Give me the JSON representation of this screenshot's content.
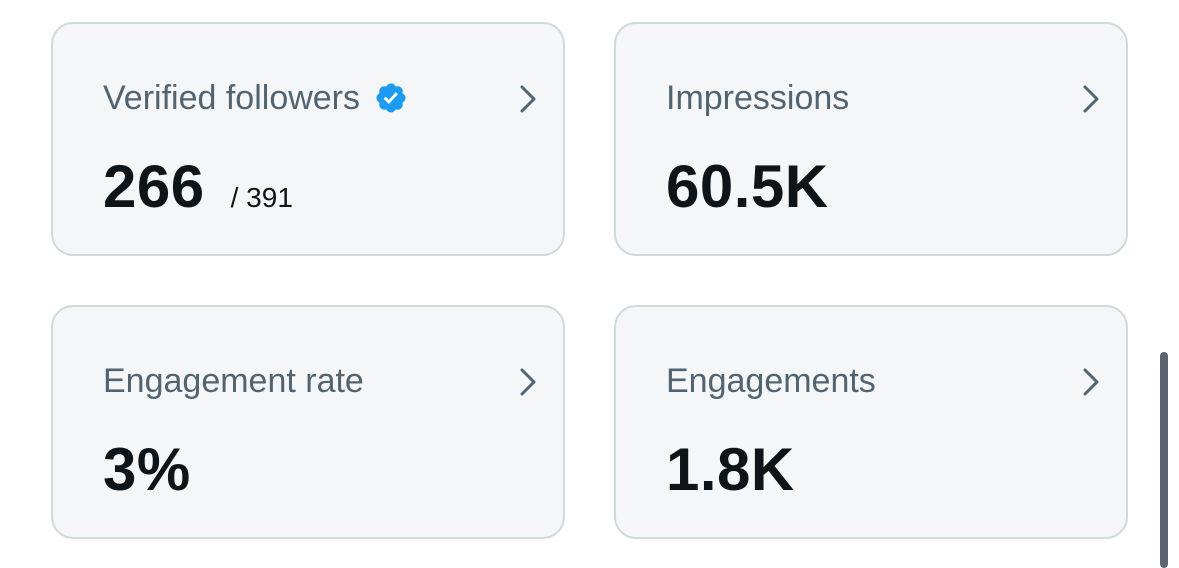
{
  "colors": {
    "card_background": "#f4f6f7",
    "card_border": "#cfd9de",
    "title_text": "#536471",
    "value_text": "#0f1419",
    "verified_badge": "#1d9bf0",
    "chevron": "#536471"
  },
  "cards": [
    {
      "title": "Verified followers",
      "value": "266",
      "sub_value": "/ 391",
      "icons": [
        "verified-badge-icon",
        "chevron-right-icon"
      ]
    },
    {
      "title": "Impressions",
      "value": "60.5K",
      "icons": [
        "chevron-right-icon"
      ]
    },
    {
      "title": "Engagement rate",
      "value": "3%",
      "icons": [
        "chevron-right-icon"
      ]
    },
    {
      "title": "Engagements",
      "value": "1.8K",
      "icons": [
        "chevron-right-icon"
      ]
    }
  ]
}
